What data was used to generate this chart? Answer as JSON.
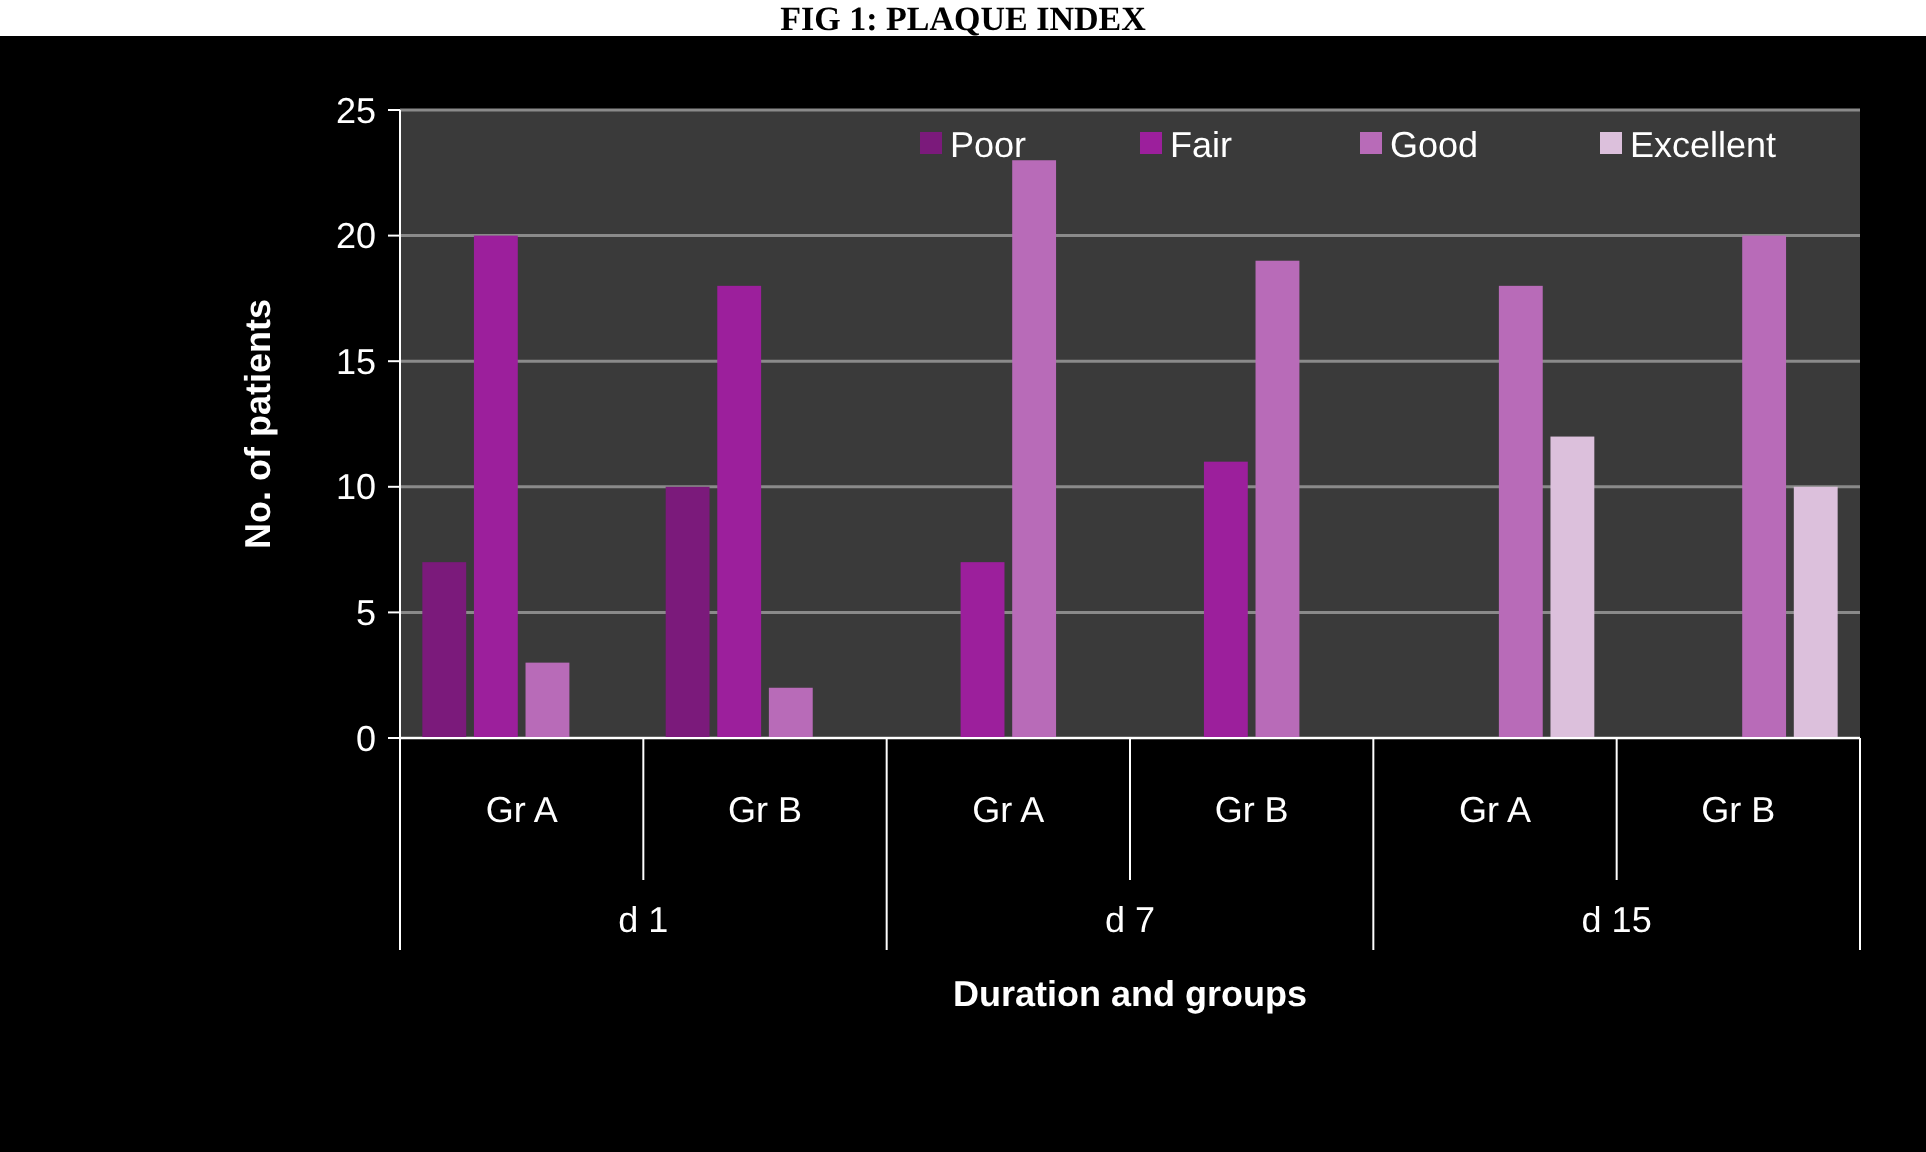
{
  "chart_data": {
    "type": "bar",
    "title": "FIG 1: PLAQUE INDEX",
    "xlabel": "Duration and groups",
    "ylabel": "No. of patients",
    "categories": [
      "Gr A",
      "Gr B",
      "Gr A",
      "Gr B",
      "Gr A",
      "Gr B"
    ],
    "annotations": [
      "d 1",
      "d 7",
      "d 15"
    ],
    "series": [
      {
        "name": "Poor",
        "color": "#7b1a7b",
        "values": [
          7,
          10,
          0,
          0,
          0,
          0
        ]
      },
      {
        "name": "Fair",
        "color": "#9c1f9c",
        "values": [
          20,
          18,
          7,
          11,
          0,
          0
        ]
      },
      {
        "name": "Good",
        "color": "#b86bb8",
        "values": [
          3,
          2,
          23,
          19,
          18,
          20
        ]
      },
      {
        "name": "Excellent",
        "color": "#dcc0dc",
        "values": [
          0,
          0,
          0,
          0,
          12,
          10
        ]
      }
    ],
    "ylim": [
      0,
      25
    ],
    "yticks": [
      0,
      5,
      10,
      15,
      20,
      25
    ],
    "grid": "y",
    "legend": "top right"
  }
}
